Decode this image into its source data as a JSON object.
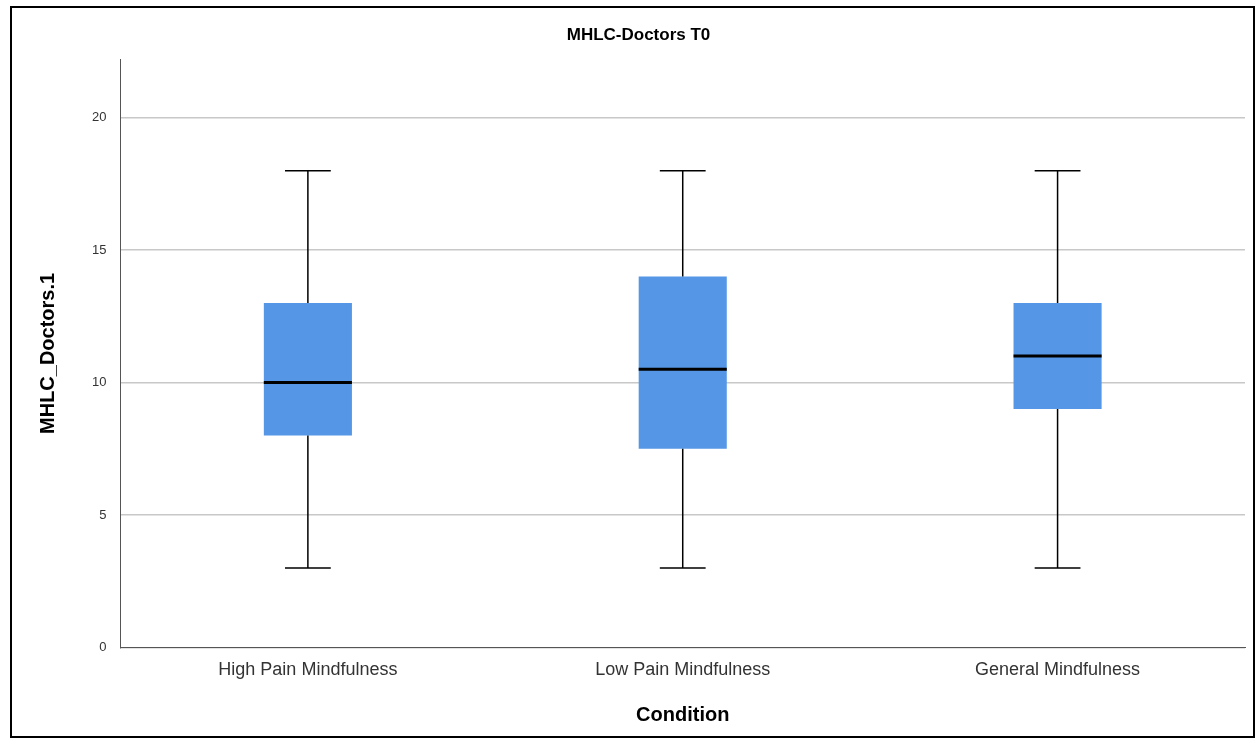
{
  "chart_data": {
    "type": "box",
    "title": "MHLC-Doctors T0",
    "xlabel": "Condition",
    "ylabel": "MHLC_Doctors.1",
    "categories": [
      "High Pain Mindfulness",
      "Low Pain Mindfulness",
      "General Mindfulness"
    ],
    "boxes": [
      {
        "low": 3,
        "q1": 8,
        "median": 10,
        "q3": 13,
        "high": 18
      },
      {
        "low": 3,
        "q1": 7.5,
        "median": 10.5,
        "q3": 14,
        "high": 18
      },
      {
        "low": 3,
        "q1": 9,
        "median": 11,
        "q3": 13,
        "high": 18
      }
    ],
    "color": "#5596e6",
    "ylim": [
      0,
      22.2
    ],
    "yticks": [
      0,
      5,
      10,
      15,
      20
    ],
    "grid": "y"
  }
}
